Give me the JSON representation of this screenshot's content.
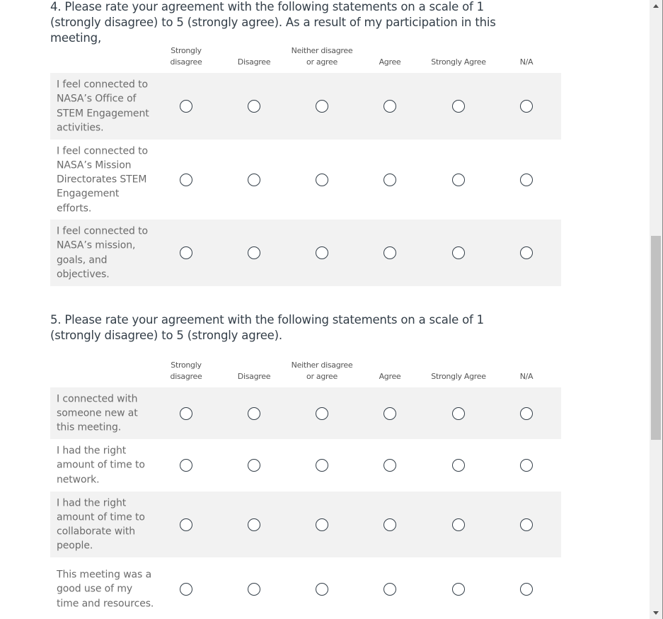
{
  "columns": [
    "Strongly\ndisagree",
    "Disagree",
    "Neither disagree\nor agree",
    "Agree",
    "Strongly Agree",
    "N/A"
  ],
  "questions": [
    {
      "title": "4. Please rate your agreement with the following statements on a scale of 1 (strongly disagree) to 5 (strongly agree). As a result of my participation in this meeting,",
      "rows": [
        "I feel connected to NASA’s Office of STEM Engagement activities.",
        "I feel connected to NASA’s Mission Directorates STEM Engagement efforts.",
        "I feel connected to NASA’s mission, goals, and objectives."
      ]
    },
    {
      "title": "5. Please rate your agreement with the following statements on a scale of 1 (strongly disagree) to 5 (strongly agree).",
      "rows": [
        "I connected with someone new at this meeting.",
        "I had the right amount of time to network.",
        "I had the right amount of time to collaborate with people.",
        "This meeting was a good use of my time and resources."
      ]
    }
  ]
}
